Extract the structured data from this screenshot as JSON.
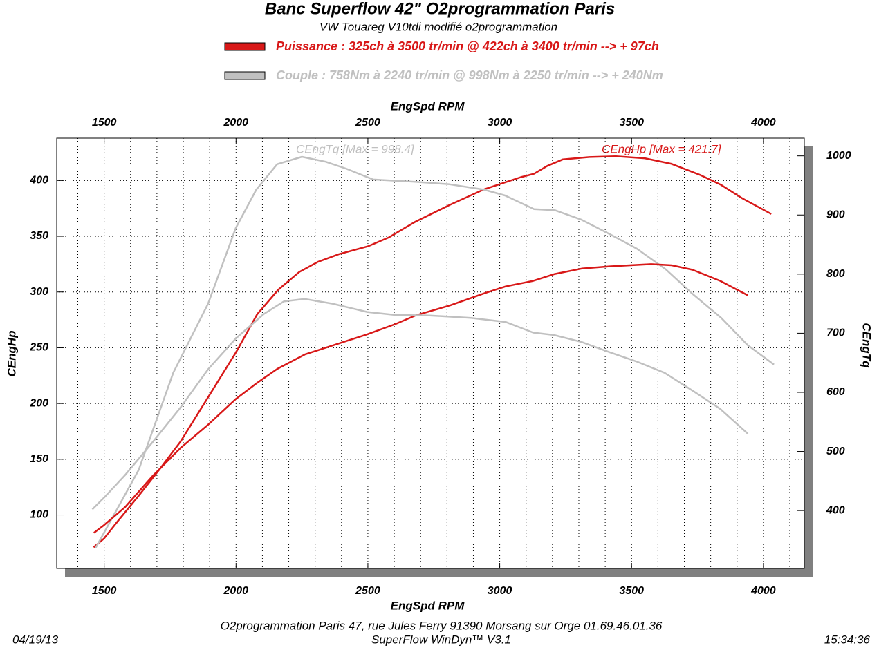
{
  "chart_data": {
    "type": "line",
    "title": "Banc Superflow 42\" O2programmation Paris",
    "subtitle": "VW Touareg V10tdi modifié o2programmation",
    "legend": [
      {
        "label": "Puissance : 325ch à 3500 tr/min @ 422ch à 3400 tr/min --> + 97ch",
        "color": "#d81818"
      },
      {
        "label": "Couple : 758Nm à 2240 tr/min @ 998Nm à 2250 tr/min --> + 240Nm",
        "color": "#c0c0c0"
      }
    ],
    "xlabel": "EngSpd RPM",
    "ylabel": "CEngHp",
    "y2label": "CEngTq",
    "xlim": [
      1320,
      4155
    ],
    "xticks": [
      1500,
      2000,
      2500,
      3000,
      3500,
      4000
    ],
    "xgrid": [
      1400,
      1500,
      1600,
      1700,
      1800,
      1900,
      2000,
      2100,
      2200,
      2300,
      2400,
      2500,
      2600,
      2700,
      2800,
      2900,
      3000,
      3100,
      3200,
      3300,
      3400,
      3500,
      3600,
      3700,
      3800,
      3900,
      4000,
      4100
    ],
    "ylim": [
      52,
      438
    ],
    "yticks": [
      100,
      150,
      200,
      250,
      300,
      350,
      400
    ],
    "y2lim": [
      302,
      1030
    ],
    "y2ticks": [
      400,
      500,
      600,
      700,
      800,
      900,
      1000
    ],
    "grid": true,
    "series": [
      {
        "color": "#d81818",
        "axis": "y",
        "x": [
          1460,
          1500,
          1550,
          1630,
          1710,
          1790,
          1890,
          2000,
          2080,
          2160,
          2240,
          2310,
          2390,
          2500,
          2580,
          2680,
          2810,
          2940,
          3080,
          3130,
          3180,
          3240,
          3340,
          3440,
          3550,
          3650,
          3760,
          3840,
          3920,
          4030
        ],
        "values": [
          71,
          79,
          94,
          117,
          141,
          166,
          204,
          246,
          280,
          302,
          318,
          327,
          334,
          341,
          349,
          363,
          378,
          392,
          403,
          406,
          413,
          419,
          421,
          421.7,
          420,
          415,
          405,
          396,
          384,
          370
        ]
      },
      {
        "color": "#c0c0c0",
        "axis": "y2",
        "x": [
          1468,
          1552,
          1631,
          1762,
          1894,
          1999,
          2077,
          2156,
          2250,
          2340,
          2420,
          2520,
          2680,
          2810,
          2940,
          3020,
          3130,
          3210,
          3310,
          3420,
          3520,
          3630,
          3730,
          3840,
          3940,
          4040
        ],
        "values": [
          337,
          405,
          469,
          633,
          750,
          878,
          943,
          986,
          998.4,
          990,
          978,
          960,
          956,
          952,
          943,
          933,
          910,
          908,
          892,
          867,
          843,
          808,
          767,
          726,
          680,
          647
        ]
      },
      {
        "color": "#d81818",
        "axis": "y",
        "x": [
          1461,
          1500,
          1579,
          1684,
          1789,
          1894,
          1999,
          2077,
          2156,
          2261,
          2366,
          2497,
          2602,
          2681,
          2812,
          2944,
          3022,
          3127,
          3206,
          3311,
          3416,
          3574,
          3652,
          3731,
          3836,
          3941
        ],
        "values": [
          84,
          91,
          107,
          135,
          160,
          181,
          204,
          218,
          231,
          244,
          252,
          262,
          271,
          279,
          288,
          299,
          305,
          310,
          316,
          321,
          323,
          325,
          324,
          320,
          310,
          297
        ]
      },
      {
        "color": "#c0c0c0",
        "axis": "y2",
        "x": [
          1455,
          1500,
          1579,
          1684,
          1789,
          1894,
          1999,
          2104,
          2182,
          2261,
          2366,
          2497,
          2602,
          2734,
          2891,
          3022,
          3127,
          3206,
          3311,
          3416,
          3520,
          3625,
          3731,
          3836,
          3941
        ],
        "values": [
          402,
          422,
          460,
          516,
          574,
          639,
          691,
          732,
          754,
          758,
          750,
          736,
          731,
          730,
          726,
          719,
          701,
          697,
          685,
          668,
          652,
          633,
          603,
          572,
          530
        ]
      }
    ],
    "annotations": [
      {
        "text": "CEngTq [Max = 998.4]",
        "color": "#c0c0c0"
      },
      {
        "text": "CEngHp [Max = 421.7]",
        "color": "#d81818"
      }
    ]
  },
  "footer": {
    "address": "O2programmation Paris 47, rue Jules Ferry 91390 Morsang sur Orge 01.69.46.01.36",
    "software": "SuperFlow WinDyn™ V3.1",
    "date": "04/19/13",
    "time": "15:34:36"
  }
}
